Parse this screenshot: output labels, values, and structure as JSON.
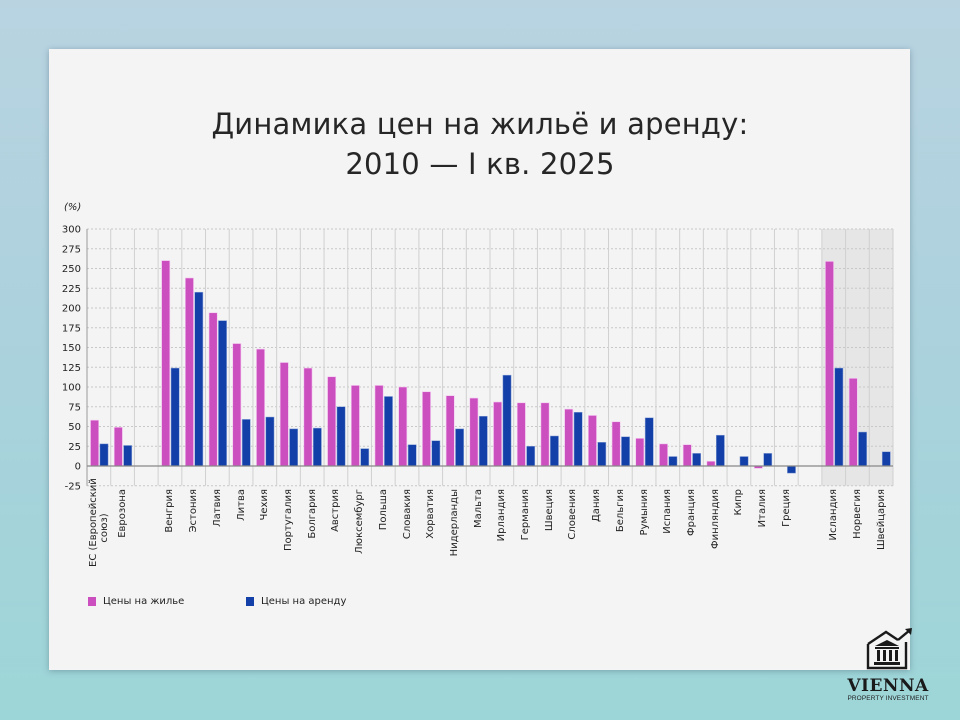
{
  "page": {
    "title_line1": "Динамика цен на жильё и аренду:",
    "title_line2": "2010 — I кв. 2025",
    "unit_label": "(%)"
  },
  "legend": {
    "housing_label": "Цены на жилье",
    "rent_label": "Цены на аренду"
  },
  "colors": {
    "housing": "#cc4fc0",
    "rent": "#1340a8",
    "grid": "#c8c8c8",
    "shade": "#e6e6e6",
    "axis": "#888888"
  },
  "logo": {
    "name": "VIENNA",
    "subtitle": "PROPERTY INVESTMENT",
    "icon": "building-arrow-icon"
  },
  "chart_data": {
    "type": "bar",
    "title": "Динамика цен на жильё и аренду: 2010 — I кв. 2025",
    "xlabel": "",
    "ylabel": "(%)",
    "ylim": [
      -25,
      300
    ],
    "yticks": [
      -25,
      0,
      25,
      50,
      75,
      100,
      125,
      150,
      175,
      200,
      225,
      250,
      275,
      300
    ],
    "grid": true,
    "legend_position": "bottom-left",
    "categories": [
      "ЕС (Европейский союз)",
      "Еврозона",
      "",
      "Венгрия",
      "Эстония",
      "Латвия",
      "Литва",
      "Чехия",
      "Португалия",
      "Болгария",
      "Австрия",
      "Люксембург",
      "Польша",
      "Словакия",
      "Хорватия",
      "Нидерланды",
      "Мальта",
      "Ирландия",
      "Германия",
      "Швеция",
      "Словения",
      "Дания",
      "Бельгия",
      "Румыния",
      "Испания",
      "Франция",
      "Финляндия",
      "Кипр",
      "Италия",
      "Греция",
      "",
      "Исландия",
      "Норвегия",
      "Швейцария"
    ],
    "shaded_categories": [
      "Исландия",
      "Норвегия",
      "Швейцария"
    ],
    "series": [
      {
        "name": "Цены на жилье",
        "values": [
          58,
          49,
          null,
          260,
          238,
          194,
          155,
          148,
          131,
          124,
          113,
          102,
          102,
          100,
          94,
          89,
          86,
          81,
          80,
          80,
          72,
          64,
          56,
          35,
          28,
          27,
          6,
          0,
          -3,
          null,
          null,
          259,
          111,
          null
        ]
      },
      {
        "name": "Цены на аренду",
        "values": [
          28,
          26,
          null,
          124,
          220,
          184,
          59,
          62,
          47,
          48,
          75,
          22,
          88,
          27,
          32,
          47,
          63,
          115,
          25,
          38,
          68,
          30,
          37,
          61,
          12,
          16,
          39,
          12,
          16,
          -9,
          null,
          124,
          43,
          18
        ]
      }
    ]
  }
}
